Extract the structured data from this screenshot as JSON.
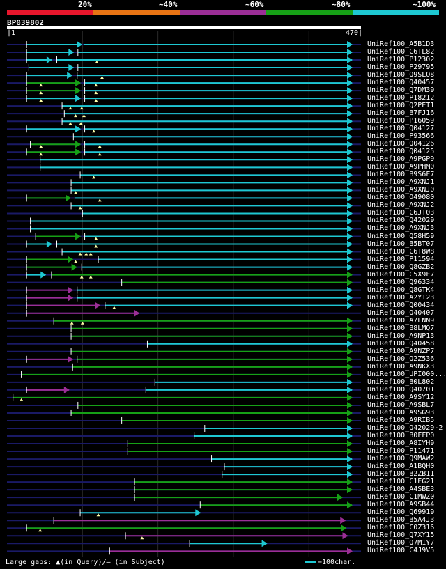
{
  "legend": {
    "labels": [
      "20%",
      "~40%",
      "~60%",
      "~80%",
      "~100%"
    ],
    "colors": [
      "#e8162c",
      "#e87414",
      "#9b2e96",
      "#16a016",
      "#1ec8d2"
    ]
  },
  "query": {
    "id": "BP039802",
    "start": "1",
    "end": "470"
  },
  "footer": {
    "gaps_text": "Large gaps: ▲(in Query)/– (in Subject)",
    "scale_text": "=100char."
  },
  "chart_data": {
    "type": "alignment",
    "query_length": 470,
    "hits": [
      {
        "name": "UniRef100_A5B1D3",
        "c": "cy",
        "s": [
          [
            27,
            100,
            "cy"
          ],
          [
            103,
            458,
            "cy"
          ]
        ],
        "g": []
      },
      {
        "name": "UniRef100_C6TL82",
        "c": "cy",
        "s": [
          [
            27,
            89,
            "cy"
          ],
          [
            95,
            458,
            "cy"
          ]
        ],
        "g": []
      },
      {
        "name": "UniRef100_P12302",
        "c": "cy",
        "s": [
          [
            27,
            60,
            "cy"
          ],
          [
            67,
            458,
            "cy"
          ]
        ],
        "g": [
          120
        ]
      },
      {
        "name": "UniRef100_P29795",
        "c": "cy",
        "s": [
          [
            30,
            89,
            "cy"
          ],
          [
            95,
            458,
            "cy"
          ]
        ],
        "g": []
      },
      {
        "name": "UniRef100_Q9SLQ8",
        "c": "cy",
        "s": [
          [
            27,
            87,
            "cy"
          ],
          [
            94,
            458,
            "cy"
          ]
        ],
        "g": [
          127
        ]
      },
      {
        "name": "UniRef100_Q40457",
        "c": "cy",
        "s": [
          [
            27,
            98,
            "gr"
          ],
          [
            104,
            458,
            "cy"
          ]
        ],
        "g": [
          46,
          119
        ]
      },
      {
        "name": "UniRef100_Q7DM39",
        "c": "cy",
        "s": [
          [
            27,
            98,
            "gr"
          ],
          [
            104,
            458,
            "cy"
          ]
        ],
        "g": [
          46,
          119
        ]
      },
      {
        "name": "UniRef100_P18212",
        "c": "cy",
        "s": [
          [
            27,
            98,
            "cy"
          ],
          [
            104,
            458,
            "cy"
          ]
        ],
        "g": [
          46,
          119
        ]
      },
      {
        "name": "UniRef100_Q2PET1",
        "c": "cy",
        "s": [
          [
            74,
            458,
            "cy"
          ]
        ],
        "g": [
          85,
          100
        ]
      },
      {
        "name": "UniRef100_B7FJ16",
        "c": "cy",
        "s": [
          [
            77,
            458,
            "cy"
          ]
        ],
        "g": [
          92,
          103
        ]
      },
      {
        "name": "UniRef100_P16059",
        "c": "cy",
        "s": [
          [
            74,
            458,
            "cy"
          ]
        ],
        "g": [
          85,
          99
        ]
      },
      {
        "name": "UniRef100_Q04127",
        "c": "cy",
        "s": [
          [
            27,
            98,
            "cy"
          ],
          [
            104,
            458,
            "cy"
          ]
        ],
        "g": [
          116
        ]
      },
      {
        "name": "UniRef100_P93566",
        "c": "cy",
        "s": [
          [
            89,
            458,
            "cy"
          ]
        ],
        "g": []
      },
      {
        "name": "UniRef100_Q04126",
        "c": "cy",
        "s": [
          [
            32,
            98,
            "gr"
          ],
          [
            104,
            458,
            "cy"
          ]
        ],
        "g": [
          46,
          124
        ]
      },
      {
        "name": "UniRef100_Q04125",
        "c": "cy",
        "s": [
          [
            27,
            98,
            "gr"
          ],
          [
            104,
            458,
            "cy"
          ]
        ],
        "g": [
          46,
          124
        ]
      },
      {
        "name": "UniRef100_A9PGP9",
        "c": "cy",
        "s": [
          [
            45,
            458,
            "cy"
          ]
        ],
        "g": []
      },
      {
        "name": "UniRef100_A9PHM0",
        "c": "cy",
        "s": [
          [
            45,
            458,
            "cy"
          ]
        ],
        "g": []
      },
      {
        "name": "UniRef100_B9S6F7",
        "c": "cy",
        "s": [
          [
            98,
            458,
            "cy"
          ]
        ],
        "g": [
          116
        ]
      },
      {
        "name": "UniRef100_A9XNJ1",
        "c": "cy",
        "s": [
          [
            86,
            458,
            "cy"
          ]
        ],
        "g": []
      },
      {
        "name": "UniRef100_A9XNJ0",
        "c": "cy",
        "s": [
          [
            86,
            458,
            "cy"
          ]
        ],
        "g": [
          92
        ]
      },
      {
        "name": "UniRef100_O49080",
        "c": "cy",
        "s": [
          [
            27,
            85,
            "gr"
          ],
          [
            91,
            458,
            "cy"
          ]
        ],
        "g": [
          124
        ]
      },
      {
        "name": "UniRef100_A9XNJ2",
        "c": "cy",
        "s": [
          [
            86,
            458,
            "cy"
          ]
        ],
        "g": [
          98
        ]
      },
      {
        "name": "UniRef100_C6JT03",
        "c": "cy",
        "s": [
          [
            101,
            458,
            "cy"
          ]
        ],
        "g": []
      },
      {
        "name": "UniRef100_Q42029",
        "c": "cy",
        "s": [
          [
            32,
            458,
            "cy"
          ]
        ],
        "g": []
      },
      {
        "name": "UniRef100_A9XNJ3",
        "c": "cy",
        "s": [
          [
            32,
            458,
            "cy"
          ]
        ],
        "g": []
      },
      {
        "name": "UniRef100_Q58H59",
        "c": "cy",
        "s": [
          [
            39,
            98,
            "gr"
          ],
          [
            104,
            458,
            "cy"
          ]
        ],
        "g": [
          119
        ]
      },
      {
        "name": "UniRef100_B5BT07",
        "c": "cy",
        "s": [
          [
            27,
            60,
            "cy"
          ],
          [
            67,
            458,
            "cy"
          ]
        ],
        "g": [
          119
        ]
      },
      {
        "name": "UniRef100_C6T8W8",
        "c": "cy",
        "s": [
          [
            74,
            458,
            "cy"
          ]
        ],
        "g": [
          98,
          106,
          112
        ]
      },
      {
        "name": "UniRef100_P11594",
        "c": "cy",
        "s": [
          [
            27,
            88,
            "gr"
          ],
          [
            122,
            458,
            "cy"
          ]
        ],
        "g": [
          92
        ]
      },
      {
        "name": "UniRef100_Q8GZB2",
        "c": "cy",
        "s": [
          [
            27,
            93,
            "gr"
          ],
          [
            100,
            458,
            "cy"
          ]
        ],
        "g": []
      },
      {
        "name": "UniRef100_C5X9F7",
        "c": "gr",
        "s": [
          [
            27,
            52,
            "cy"
          ],
          [
            60,
            458,
            "gr"
          ]
        ],
        "g": [
          100,
          112
        ]
      },
      {
        "name": "UniRef100_Q96334",
        "c": "gr",
        "s": [
          [
            153,
            458,
            "gr"
          ]
        ],
        "g": []
      },
      {
        "name": "UniRef100_Q8GTK4",
        "c": "cy",
        "s": [
          [
            27,
            88,
            "pu"
          ],
          [
            94,
            458,
            "cy"
          ]
        ],
        "g": []
      },
      {
        "name": "UniRef100_A2YI23",
        "c": "cy",
        "s": [
          [
            27,
            88,
            "pu"
          ],
          [
            94,
            458,
            "cy"
          ]
        ],
        "g": []
      },
      {
        "name": "UniRef100_Q00434",
        "c": "cy",
        "s": [
          [
            27,
            124,
            "pu"
          ],
          [
            131,
            458,
            "cy"
          ]
        ],
        "g": [
          143
        ]
      },
      {
        "name": "UniRef100_Q40407",
        "c": "cy",
        "s": [
          [
            27,
            176,
            "pu"
          ]
        ],
        "g": []
      },
      {
        "name": "UniRef100_A7LNN9",
        "c": "gr",
        "s": [
          [
            63,
            458,
            "gr"
          ]
        ],
        "g": [
          87,
          101
        ]
      },
      {
        "name": "UniRef100_B8LMQ7",
        "c": "gr",
        "s": [
          [
            86,
            458,
            "gr"
          ]
        ],
        "g": []
      },
      {
        "name": "UniRef100_A9NP13",
        "c": "gr",
        "s": [
          [
            86,
            458,
            "gr"
          ]
        ],
        "g": []
      },
      {
        "name": "UniRef100_Q40458",
        "c": "cy",
        "s": [
          [
            187,
            458,
            "cy"
          ]
        ],
        "g": []
      },
      {
        "name": "UniRef100_A9NZP7",
        "c": "gr",
        "s": [
          [
            86,
            458,
            "gr"
          ]
        ],
        "g": []
      },
      {
        "name": "UniRef100_Q2Z536",
        "c": "gr",
        "s": [
          [
            27,
            88,
            "pu"
          ],
          [
            94,
            458,
            "gr"
          ]
        ],
        "g": []
      },
      {
        "name": "UniRef100_A9NKX3",
        "c": "gr",
        "s": [
          [
            88,
            458,
            "gr"
          ]
        ],
        "g": []
      },
      {
        "name": "UniRef100_UPI000...",
        "c": "gr",
        "s": [
          [
            20,
            458,
            "gr"
          ]
        ],
        "g": []
      },
      {
        "name": "UniRef100_B0L802",
        "c": "cy",
        "s": [
          [
            197,
            458,
            "cy"
          ]
        ],
        "g": []
      },
      {
        "name": "UniRef100_Q40701",
        "c": "cy",
        "s": [
          [
            27,
            83,
            "pu"
          ],
          [
            185,
            458,
            "cy"
          ]
        ],
        "g": []
      },
      {
        "name": "UniRef100_A9SY12",
        "c": "gr",
        "s": [
          [
            9,
            458,
            "gr"
          ]
        ],
        "g": [
          20
        ]
      },
      {
        "name": "UniRef100_A9SBL7",
        "c": "gr",
        "s": [
          [
            95,
            458,
            "gr"
          ]
        ],
        "g": []
      },
      {
        "name": "UniRef100_A9SG93",
        "c": "gr",
        "s": [
          [
            86,
            458,
            "gr"
          ]
        ],
        "g": []
      },
      {
        "name": "UniRef100_A9RIB5",
        "c": "gr",
        "s": [
          [
            153,
            458,
            "gr"
          ]
        ],
        "g": []
      },
      {
        "name": "UniRef100_Q42029-2",
        "c": "cy",
        "s": [
          [
            263,
            458,
            "cy"
          ]
        ],
        "g": []
      },
      {
        "name": "UniRef100_B0FFP0",
        "c": "cy",
        "s": [
          [
            249,
            458,
            "cy"
          ]
        ],
        "g": []
      },
      {
        "name": "UniRef100_A8IYH9",
        "c": "gr",
        "s": [
          [
            161,
            458,
            "gr"
          ]
        ],
        "g": []
      },
      {
        "name": "UniRef100_P11471",
        "c": "gr",
        "s": [
          [
            161,
            458,
            "gr"
          ]
        ],
        "g": []
      },
      {
        "name": "UniRef100_Q9MAW2",
        "c": "cy",
        "s": [
          [
            272,
            458,
            "cy"
          ]
        ],
        "g": []
      },
      {
        "name": "UniRef100_A1BQH0",
        "c": "cy",
        "s": [
          [
            289,
            458,
            "cy"
          ]
        ],
        "g": []
      },
      {
        "name": "UniRef100_B2ZB11",
        "c": "cy",
        "s": [
          [
            286,
            458,
            "cy"
          ]
        ],
        "g": []
      },
      {
        "name": "UniRef100_C1EG21",
        "c": "gr",
        "s": [
          [
            170,
            458,
            "gr"
          ]
        ],
        "g": []
      },
      {
        "name": "UniRef100_A4SBE3",
        "c": "gr",
        "s": [
          [
            170,
            458,
            "gr"
          ]
        ],
        "g": []
      },
      {
        "name": "UniRef100_C1MWZ0",
        "c": "gr",
        "s": [
          [
            170,
            445,
            "gr"
          ]
        ],
        "g": []
      },
      {
        "name": "UniRef100_A9SB44",
        "c": "gr",
        "s": [
          [
            257,
            458,
            "gr"
          ]
        ],
        "g": []
      },
      {
        "name": "UniRef100_Q69919",
        "c": "cy",
        "s": [
          [
            98,
            257,
            "cy"
          ]
        ],
        "g": [
          122
        ]
      },
      {
        "name": "UniRef100_B5A4J3",
        "c": "pu",
        "s": [
          [
            63,
            449,
            "pu"
          ]
        ],
        "g": []
      },
      {
        "name": "UniRef100_C0Z316",
        "c": "pu",
        "s": [
          [
            27,
            450,
            "gr"
          ]
        ],
        "g": [
          45
        ]
      },
      {
        "name": "UniRef100_Q7XY15",
        "c": "pu",
        "s": [
          [
            158,
            452,
            "pu"
          ]
        ],
        "g": [
          180
        ]
      },
      {
        "name": "UniRef100_Q7M1Y7",
        "c": "cy",
        "s": [
          [
            243,
            345,
            "cy"
          ]
        ],
        "g": []
      },
      {
        "name": "UniRef100_C4J9V5",
        "c": "pu",
        "s": [
          [
            137,
            458,
            "pu"
          ]
        ],
        "g": []
      }
    ]
  }
}
